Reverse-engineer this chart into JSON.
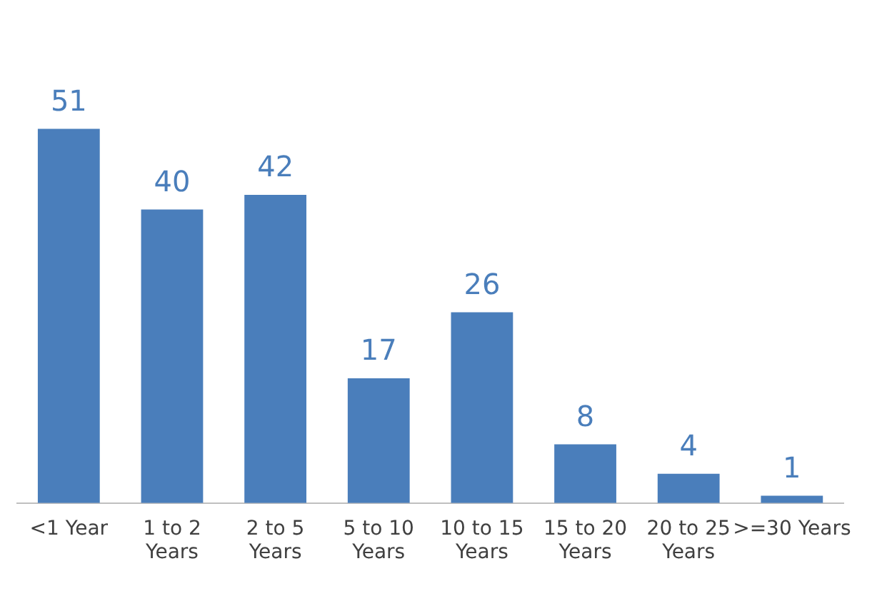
{
  "chart_data": {
    "type": "bar",
    "categories": [
      "<1 Year",
      "1 to 2 Years",
      "2 to 5 Years",
      "5 to 10 Years",
      "10 to 15 Years",
      "15 to 20 Years",
      "20 to 25 Years",
      ">=30 Years"
    ],
    "values": [
      51,
      40,
      42,
      17,
      26,
      8,
      4,
      1
    ],
    "color": "#4a7ebb",
    "data_labels": true,
    "grid": false,
    "legend": false
  }
}
